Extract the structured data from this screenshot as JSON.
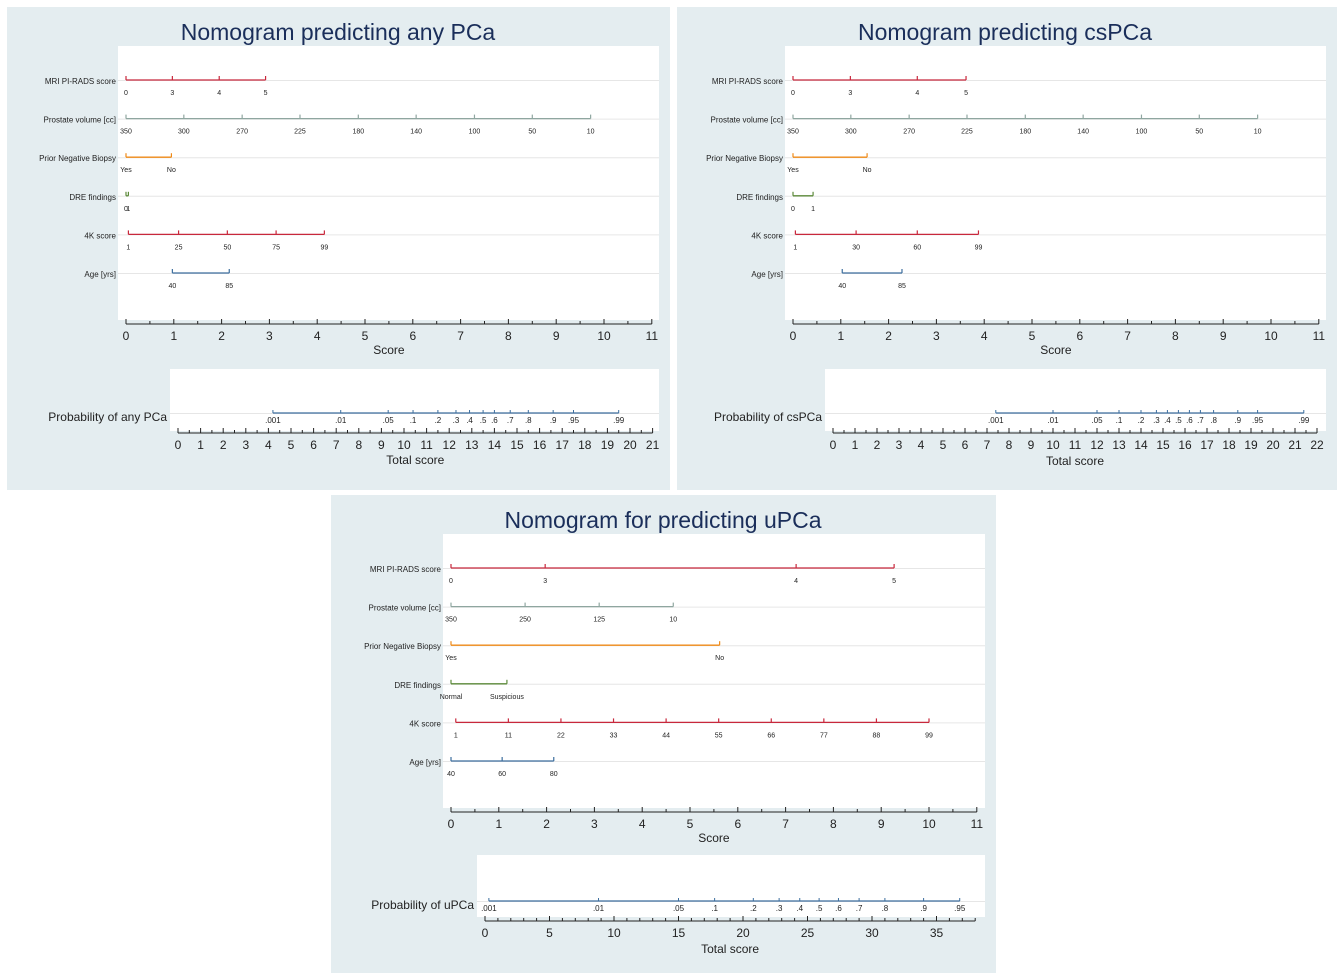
{
  "colors": {
    "panel_bg": "#e4edf0",
    "plot_bg": "#ffffff",
    "title": "#1a2e5a",
    "grid": "#e6e6e6",
    "axis": "#222222",
    "text": "#222222",
    "red": "#c8283c",
    "gray": "#8fa6a0",
    "orange": "#ef8a17",
    "green": "#5c8a3a",
    "blue": "#3c6e9e"
  },
  "chart_data": [
    {
      "type": "nomogram",
      "title": "Nomogram predicting any PCa",
      "score_axis": {
        "label": "Score",
        "range": [
          0,
          11
        ],
        "ticks": [
          0,
          1,
          2,
          3,
          4,
          5,
          6,
          7,
          8,
          9,
          10,
          11
        ]
      },
      "variables": [
        {
          "name": "MRI PI-RADS score",
          "color": "red",
          "points": [
            {
              "label": "0",
              "score": 0
            },
            {
              "label": "3",
              "score": 0.97
            },
            {
              "label": "4",
              "score": 1.95
            },
            {
              "label": "5",
              "score": 2.92
            }
          ]
        },
        {
          "name": "Prostate volume [cc]",
          "color": "gray",
          "points": [
            {
              "label": "350",
              "score": 0
            },
            {
              "label": "300",
              "score": 1.21
            },
            {
              "label": "270",
              "score": 2.43
            },
            {
              "label": "225",
              "score": 3.64
            },
            {
              "label": "180",
              "score": 4.86
            },
            {
              "label": "140",
              "score": 6.07
            },
            {
              "label": "100",
              "score": 7.29
            },
            {
              "label": "50",
              "score": 8.5
            },
            {
              "label": "10",
              "score": 9.72
            }
          ]
        },
        {
          "name": "Prior Negative Biopsy",
          "color": "orange",
          "points": [
            {
              "label": "Yes",
              "score": 0
            },
            {
              "label": "No",
              "score": 0.95
            }
          ]
        },
        {
          "name": "DRE findings",
          "color": "green",
          "points": [
            {
              "label": "0",
              "score": 0
            },
            {
              "label": "1",
              "score": 0.05
            }
          ]
        },
        {
          "name": "4K score",
          "color": "red",
          "points": [
            {
              "label": "1",
              "score": 0.05
            },
            {
              "label": "25",
              "score": 1.1
            },
            {
              "label": "50",
              "score": 2.12
            },
            {
              "label": "75",
              "score": 3.14
            },
            {
              "label": "99",
              "score": 4.15
            }
          ]
        },
        {
          "name": "Age [yrs]",
          "color": "blue",
          "points": [
            {
              "label": "40",
              "score": 0.97
            },
            {
              "label": "85",
              "score": 2.16
            }
          ]
        }
      ],
      "prob_axis": {
        "label": "Probability of any PCa",
        "xlabel": "Total score",
        "range": [
          0,
          21
        ],
        "ticks": [
          0,
          1,
          2,
          3,
          4,
          5,
          6,
          7,
          8,
          9,
          10,
          11,
          12,
          13,
          14,
          15,
          16,
          17,
          18,
          19,
          20,
          21
        ],
        "points": [
          {
            "label": ".001",
            "total": 4.2
          },
          {
            "label": ".01",
            "total": 7.2
          },
          {
            "label": ".05",
            "total": 9.3
          },
          {
            "label": ".1",
            "total": 10.4
          },
          {
            "label": ".2",
            "total": 11.5
          },
          {
            "label": ".3",
            "total": 12.3
          },
          {
            "label": ".4",
            "total": 12.9
          },
          {
            "label": ".5",
            "total": 13.5
          },
          {
            "label": ".6",
            "total": 14.0
          },
          {
            "label": ".7",
            "total": 14.7
          },
          {
            "label": ".8",
            "total": 15.5
          },
          {
            "label": ".9",
            "total": 16.6
          },
          {
            "label": ".95",
            "total": 17.5
          },
          {
            "label": ".99",
            "total": 19.5
          }
        ]
      }
    },
    {
      "type": "nomogram",
      "title": "Nomogram predicting csPCa",
      "score_axis": {
        "label": "Score",
        "range": [
          0,
          11
        ],
        "ticks": [
          0,
          1,
          2,
          3,
          4,
          5,
          6,
          7,
          8,
          9,
          10,
          11
        ]
      },
      "variables": [
        {
          "name": "MRI PI-RADS score",
          "color": "red",
          "points": [
            {
              "label": "0",
              "score": 0
            },
            {
              "label": "3",
              "score": 1.2
            },
            {
              "label": "4",
              "score": 2.6
            },
            {
              "label": "5",
              "score": 3.62
            }
          ]
        },
        {
          "name": "Prostate volume [cc]",
          "color": "gray",
          "points": [
            {
              "label": "350",
              "score": 0
            },
            {
              "label": "300",
              "score": 1.21
            },
            {
              "label": "270",
              "score": 2.43
            },
            {
              "label": "225",
              "score": 3.64
            },
            {
              "label": "180",
              "score": 4.86
            },
            {
              "label": "140",
              "score": 6.07
            },
            {
              "label": "100",
              "score": 7.29
            },
            {
              "label": "50",
              "score": 8.5
            },
            {
              "label": "10",
              "score": 9.72
            }
          ]
        },
        {
          "name": "Prior Negative Biopsy",
          "color": "orange",
          "points": [
            {
              "label": "Yes",
              "score": 0
            },
            {
              "label": "No",
              "score": 1.55
            }
          ]
        },
        {
          "name": "DRE findings",
          "color": "green",
          "points": [
            {
              "label": "0",
              "score": 0
            },
            {
              "label": "1",
              "score": 0.42
            }
          ]
        },
        {
          "name": "4K score",
          "color": "red",
          "points": [
            {
              "label": "1",
              "score": 0.05
            },
            {
              "label": "30",
              "score": 1.32
            },
            {
              "label": "60",
              "score": 2.6
            },
            {
              "label": "99",
              "score": 3.88
            }
          ]
        },
        {
          "name": "Age [yrs]",
          "color": "blue",
          "points": [
            {
              "label": "40",
              "score": 1.03
            },
            {
              "label": "85",
              "score": 2.28
            }
          ]
        }
      ],
      "prob_axis": {
        "label": "Probability of csPCa",
        "xlabel": "Total score",
        "range": [
          0,
          22
        ],
        "ticks": [
          0,
          1,
          2,
          3,
          4,
          5,
          6,
          7,
          8,
          9,
          10,
          11,
          12,
          13,
          14,
          15,
          16,
          17,
          18,
          19,
          20,
          21,
          22
        ],
        "points": [
          {
            "label": ".001",
            "total": 7.4
          },
          {
            "label": ".01",
            "total": 10.0
          },
          {
            "label": ".05",
            "total": 12.0
          },
          {
            "label": ".1",
            "total": 13.0
          },
          {
            "label": ".2",
            "total": 14.0
          },
          {
            "label": ".3",
            "total": 14.7
          },
          {
            "label": ".4",
            "total": 15.2
          },
          {
            "label": ".5",
            "total": 15.7
          },
          {
            "label": ".6",
            "total": 16.2
          },
          {
            "label": ".7",
            "total": 16.7
          },
          {
            "label": ".8",
            "total": 17.3
          },
          {
            "label": ".9",
            "total": 18.4
          },
          {
            "label": ".95",
            "total": 19.3
          },
          {
            "label": ".99",
            "total": 21.4
          }
        ]
      }
    },
    {
      "type": "nomogram",
      "title": "Nomogram for predicting uPCa",
      "score_axis": {
        "label": "Score",
        "range": [
          0,
          11
        ],
        "ticks": [
          0,
          1,
          2,
          3,
          4,
          5,
          6,
          7,
          8,
          9,
          10,
          11
        ]
      },
      "variables": [
        {
          "name": "MRI PI-RADS score",
          "color": "red",
          "points": [
            {
              "label": "0",
              "score": 0
            },
            {
              "label": "3",
              "score": 1.97
            },
            {
              "label": "4",
              "score": 7.22
            },
            {
              "label": "5",
              "score": 9.27
            }
          ]
        },
        {
          "name": "Prostate volume [cc]",
          "color": "gray",
          "points": [
            {
              "label": "350",
              "score": 0
            },
            {
              "label": "250",
              "score": 1.55
            },
            {
              "label": "125",
              "score": 3.1
            },
            {
              "label": "10",
              "score": 4.65
            }
          ]
        },
        {
          "name": "Prior Negative Biopsy",
          "color": "orange",
          "points": [
            {
              "label": "Yes",
              "score": 0
            },
            {
              "label": "No",
              "score": 5.62
            }
          ]
        },
        {
          "name": "DRE findings",
          "color": "green",
          "points": [
            {
              "label": "Normal",
              "score": 0
            },
            {
              "label": "Suspicious",
              "score": 1.17
            }
          ]
        },
        {
          "name": "4K score",
          "color": "red",
          "points": [
            {
              "label": "1",
              "score": 0.1
            },
            {
              "label": "11",
              "score": 1.2
            },
            {
              "label": "22",
              "score": 2.3
            },
            {
              "label": "33",
              "score": 3.4
            },
            {
              "label": "44",
              "score": 4.5
            },
            {
              "label": "55",
              "score": 5.6
            },
            {
              "label": "66",
              "score": 6.7
            },
            {
              "label": "77",
              "score": 7.8
            },
            {
              "label": "88",
              "score": 8.9
            },
            {
              "label": "99",
              "score": 10.0
            }
          ]
        },
        {
          "name": "Age [yrs]",
          "color": "blue",
          "points": [
            {
              "label": "40",
              "score": 0
            },
            {
              "label": "60",
              "score": 1.07
            },
            {
              "label": "80",
              "score": 2.15
            }
          ]
        }
      ],
      "prob_axis": {
        "label": "Probability of uPCa",
        "xlabel": "Total score",
        "range": [
          0,
          38
        ],
        "ticks": [
          0,
          5,
          10,
          15,
          20,
          25,
          30,
          35
        ],
        "minor_step": 1,
        "points": [
          {
            "label": ".001",
            "total": 0.3
          },
          {
            "label": ".01",
            "total": 8.8
          },
          {
            "label": ".05",
            "total": 15.0
          },
          {
            "label": ".1",
            "total": 17.8
          },
          {
            "label": ".2",
            "total": 20.8
          },
          {
            "label": ".3",
            "total": 22.8
          },
          {
            "label": ".4",
            "total": 24.4
          },
          {
            "label": ".5",
            "total": 25.9
          },
          {
            "label": ".6",
            "total": 27.4
          },
          {
            "label": ".7",
            "total": 29.0
          },
          {
            "label": ".8",
            "total": 31.0
          },
          {
            "label": ".9",
            "total": 34.0
          },
          {
            "label": ".95",
            "total": 36.8
          }
        ]
      }
    }
  ]
}
